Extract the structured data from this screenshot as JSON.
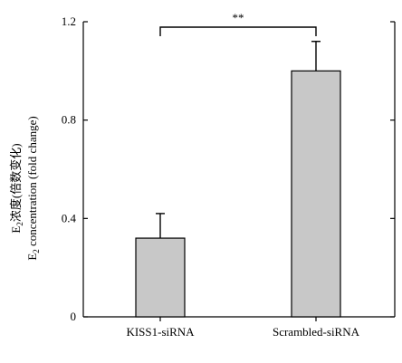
{
  "chart_data": {
    "type": "bar",
    "categories": [
      "KISS1-siRNA",
      "Scrambled-siRNA"
    ],
    "values": [
      0.32,
      1.0
    ],
    "errors": [
      0.1,
      0.12
    ],
    "ylim": [
      0,
      1.2
    ],
    "yticks": [
      0,
      0.4,
      0.8,
      1.2
    ],
    "ytick_labels": [
      "0",
      "0.4",
      "0.8",
      "1.2"
    ],
    "ylabel_line1": {
      "pre": "E",
      "sub": "2",
      "post": "浓度(倍数变化)"
    },
    "ylabel_line2": {
      "pre": "E",
      "sub": "2",
      "post": " concentration (fold change)"
    },
    "significance": {
      "label": "**",
      "between": [
        0,
        1
      ]
    },
    "colors": {
      "bar_fill": "#c8c8c8",
      "stroke": "#000000"
    }
  }
}
